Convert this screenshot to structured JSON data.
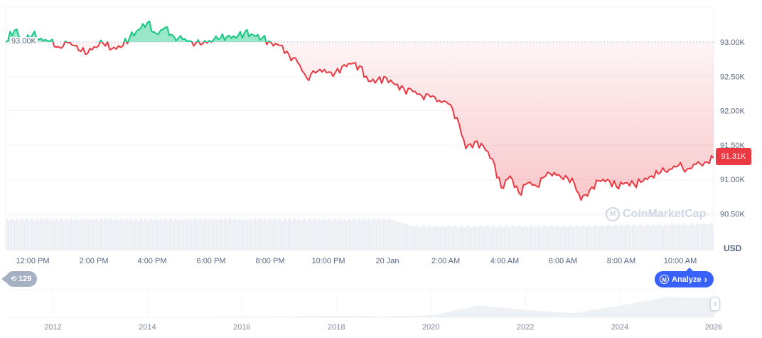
{
  "chart_data": {
    "type": "line",
    "title": "",
    "currency": "USD",
    "ylabel": "USD",
    "xlabel": "",
    "ylim": [
      90.35,
      93.55
    ],
    "y_ticks": [
      "93.00K",
      "92.50K",
      "92.00K",
      "91.50K",
      "91.00K",
      "90.50K"
    ],
    "x_ticks": [
      "12:00 PM",
      "2:00 PM",
      "4:00 PM",
      "6:00 PM",
      "8:00 PM",
      "10:00 PM",
      "20 Jan",
      "2:00 AM",
      "4:00 AM",
      "6:00 AM",
      "8:00 AM",
      "10:00 AM"
    ],
    "reference_price": "93.00K",
    "reference_value": 93.0,
    "current_price": "91.31K",
    "current_value": 91.31,
    "above_reference_color": "#16c784",
    "below_reference_color": "#ea3943",
    "grid": true,
    "series": [
      {
        "name": "Price (K USD)",
        "x_hours_from_start": [
          0,
          0.3,
          0.6,
          0.9,
          1.2,
          1.5,
          1.8,
          2.1,
          2.4,
          2.7,
          3.0,
          3.3,
          3.6,
          3.9,
          4.2,
          4.5,
          4.8,
          5.1,
          5.4,
          5.7,
          6.0,
          6.3,
          6.6,
          6.9,
          7.2,
          7.5,
          7.8,
          8.1,
          8.4,
          8.7,
          9.0,
          9.3,
          9.6,
          9.9,
          10.2,
          10.5,
          10.8,
          11.1,
          11.4,
          11.7,
          12.0,
          12.3,
          12.6,
          12.9,
          13.2,
          13.5,
          13.8,
          14.1,
          14.4,
          14.7,
          15.0,
          15.3,
          15.6,
          15.9,
          16.2,
          16.5,
          16.8,
          17.1,
          17.4,
          17.7,
          18.0,
          18.3,
          18.6,
          18.9,
          19.2,
          19.5,
          19.8,
          20.1,
          20.4,
          20.7,
          21.0,
          21.3,
          21.6,
          21.9,
          22.2,
          22.5,
          22.8,
          23.1,
          23.4,
          23.7,
          24.0
        ],
        "values": [
          93.0,
          93.17,
          93.02,
          93.1,
          93.05,
          93.01,
          92.93,
          92.99,
          92.95,
          92.82,
          92.93,
          92.98,
          92.9,
          92.92,
          93.06,
          93.18,
          93.28,
          93.12,
          93.21,
          93.08,
          93.04,
          93.01,
          92.96,
          93.02,
          93.04,
          93.08,
          93.06,
          93.14,
          93.1,
          93.06,
          92.99,
          92.95,
          92.82,
          92.7,
          92.48,
          92.55,
          92.6,
          92.5,
          92.64,
          92.68,
          92.65,
          92.43,
          92.45,
          92.48,
          92.38,
          92.32,
          92.28,
          92.22,
          92.2,
          92.15,
          92.1,
          91.9,
          91.45,
          91.55,
          91.48,
          91.3,
          90.88,
          91.05,
          90.8,
          90.95,
          90.9,
          91.05,
          91.1,
          91.0,
          91.02,
          90.7,
          90.85,
          90.98,
          91.0,
          90.9,
          90.95,
          90.93,
          90.97,
          91.05,
          91.1,
          91.15,
          91.2,
          91.15,
          91.22,
          91.25,
          91.31
        ]
      },
      {
        "name": "Volume",
        "type": "bar",
        "note": "volume bars roughly flat, higher before 20 Jan and lower after"
      }
    ],
    "navigator": {
      "x_ticks": [
        "2012",
        "2014",
        "2016",
        "2018",
        "2020",
        "2022",
        "2024",
        "2026"
      ],
      "type": "area",
      "years": [
        2011,
        2013,
        2015,
        2017,
        2018,
        2019,
        2020,
        2021,
        2022,
        2023,
        2024,
        2025,
        2026
      ],
      "relative_values": [
        0.0,
        0.0,
        0.01,
        0.05,
        0.07,
        0.05,
        0.1,
        0.55,
        0.35,
        0.2,
        0.55,
        0.95,
        0.9
      ]
    }
  },
  "labels": {
    "reference": "93.00K",
    "current": "91.31K",
    "currency": "USD",
    "history_count": "129",
    "analyze": "Analyze",
    "analyze_chevron": "›",
    "watermark": "CoinMarketCap",
    "handle": "II"
  },
  "icons": {
    "history": "history-clock-icon",
    "analyze": "cmc-logo-icon",
    "watermark": "cmc-logo-icon"
  }
}
